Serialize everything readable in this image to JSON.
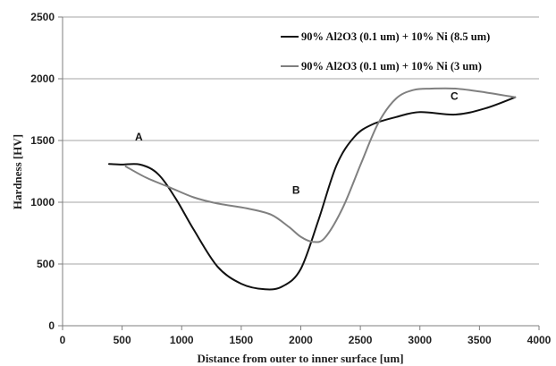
{
  "chart_data": {
    "type": "line",
    "xlabel": "Distance from outer to inner surface [um]",
    "ylabel": "Hardness [HV]",
    "xlim": [
      0,
      4000
    ],
    "ylim": [
      0,
      2500
    ],
    "xticks": [
      "0",
      "500",
      "1000",
      "1500",
      "2000",
      "2500",
      "3000",
      "3500",
      "4000"
    ],
    "yticks": [
      "0",
      "500",
      "1000",
      "1500",
      "2000",
      "2500"
    ],
    "grid": "horizontal",
    "legend_position": "top-right",
    "series": [
      {
        "name": "90% Al2O3 (0.1 um) + 10% Ni (8.5 um)",
        "color": "#111111",
        "x": [
          390,
          500,
          650,
          800,
          950,
          1100,
          1300,
          1500,
          1700,
          1850,
          2000,
          2150,
          2300,
          2450,
          2600,
          2800,
          3000,
          3300,
          3550,
          3800
        ],
        "y": [
          1310,
          1305,
          1305,
          1230,
          1030,
          780,
          480,
          340,
          295,
          320,
          460,
          860,
          1300,
          1530,
          1630,
          1690,
          1730,
          1710,
          1760,
          1850
        ]
      },
      {
        "name": "90% Al2O3 (0.1 um) + 10% Ni (3 um)",
        "color": "#808080",
        "x": [
          530,
          700,
          900,
          1100,
          1300,
          1550,
          1750,
          1900,
          2000,
          2100,
          2200,
          2350,
          2500,
          2650,
          2800,
          2950,
          3100,
          3300,
          3550,
          3800
        ],
        "y": [
          1290,
          1200,
          1120,
          1040,
          990,
          950,
          900,
          800,
          720,
          680,
          710,
          950,
          1300,
          1640,
          1840,
          1910,
          1920,
          1920,
          1890,
          1850
        ]
      }
    ],
    "annotations": [
      {
        "text": "A",
        "x": 640,
        "y": 1500
      },
      {
        "text": "B",
        "x": 1960,
        "y": 1070
      },
      {
        "text": "C",
        "x": 3290,
        "y": 1830
      }
    ]
  }
}
